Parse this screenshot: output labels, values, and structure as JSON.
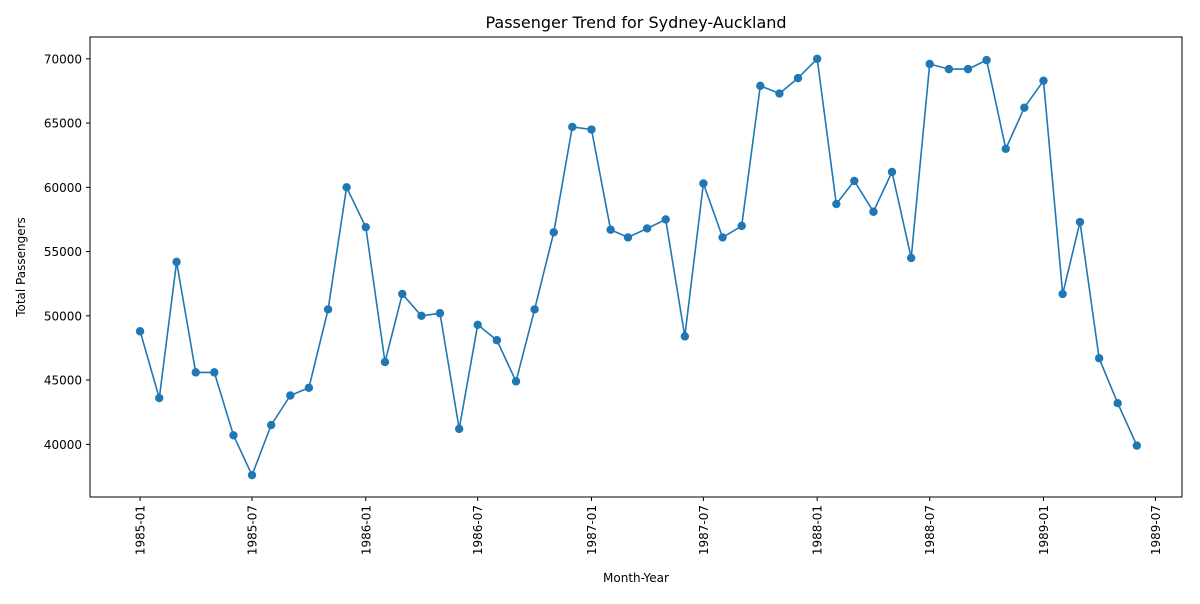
{
  "chart_data": {
    "type": "line",
    "title": "Passenger Trend for Sydney-Auckland",
    "xlabel": "Month-Year",
    "ylabel": "Total Passengers",
    "series_color": "#1f77b4",
    "x_tick_labels": [
      "1985-01",
      "1985-07",
      "1986-01",
      "1986-07",
      "1987-01",
      "1987-07",
      "1988-01",
      "1988-07",
      "1989-01",
      "1989-07"
    ],
    "y_tick_labels": [
      "40000",
      "45000",
      "50000",
      "55000",
      "60000",
      "65000",
      "70000"
    ],
    "y_ticks": [
      40000,
      45000,
      50000,
      55000,
      60000,
      65000,
      70000
    ],
    "xlim": [
      "1984-10-12",
      "1989-08-13"
    ],
    "ylim": [
      35900,
      71700
    ],
    "grid": false,
    "legend": "none",
    "x": [
      "1985-01",
      "1985-02",
      "1985-03",
      "1985-04",
      "1985-05",
      "1985-06",
      "1985-07",
      "1985-08",
      "1985-09",
      "1985-10",
      "1985-11",
      "1985-12",
      "1986-01",
      "1986-02",
      "1986-03",
      "1986-04",
      "1986-05",
      "1986-06",
      "1986-07",
      "1986-08",
      "1986-09",
      "1986-10",
      "1986-11",
      "1986-12",
      "1987-01",
      "1987-02",
      "1987-03",
      "1987-04",
      "1987-05",
      "1987-06",
      "1987-07",
      "1987-08",
      "1987-09",
      "1987-10",
      "1987-11",
      "1987-12",
      "1988-01",
      "1988-02",
      "1988-03",
      "1988-04",
      "1988-05",
      "1988-06",
      "1988-07",
      "1988-08",
      "1988-09",
      "1988-10",
      "1988-11",
      "1988-12",
      "1989-01",
      "1989-02",
      "1989-03",
      "1989-04",
      "1989-05",
      "1989-06"
    ],
    "values": [
      48800,
      43600,
      54200,
      45600,
      45600,
      40700,
      37600,
      41500,
      43800,
      44400,
      50500,
      60000,
      56900,
      46400,
      51700,
      50000,
      50200,
      41200,
      49300,
      48100,
      44900,
      50500,
      56500,
      64700,
      64500,
      56700,
      56100,
      56800,
      57500,
      48400,
      60300,
      56100,
      57000,
      67900,
      67300,
      68500,
      70000,
      58700,
      60500,
      58100,
      61200,
      54500,
      69600,
      69200,
      69200,
      69900,
      63000,
      66200,
      68300,
      51700,
      57300,
      46700,
      43200,
      39900
    ]
  }
}
